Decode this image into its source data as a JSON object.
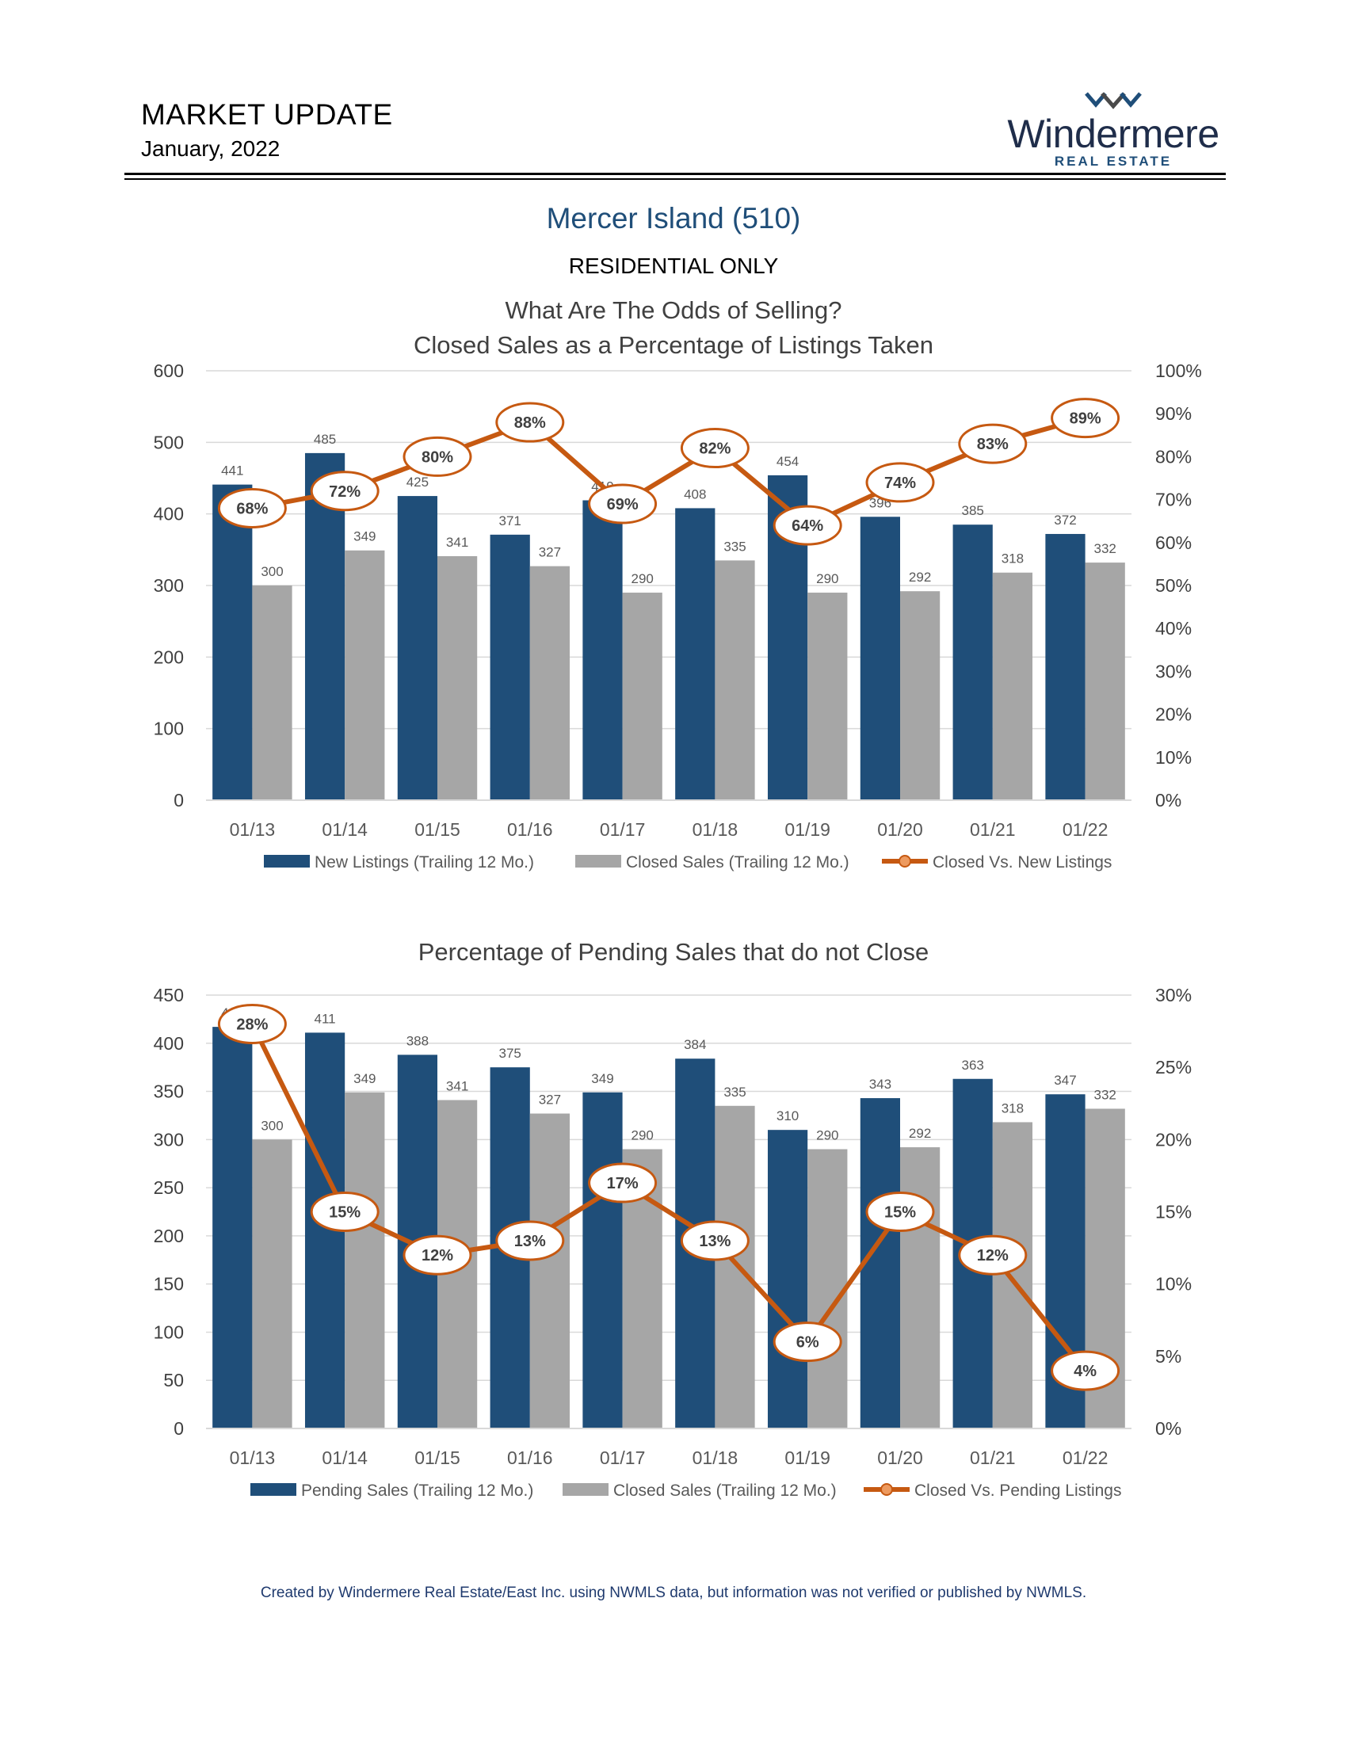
{
  "header": {
    "title": "MARKET UPDATE",
    "date": "January, 2022",
    "logo_word": "Windermere",
    "logo_sub": "REAL ESTATE"
  },
  "area": {
    "name": "Mercer Island (510)",
    "subtitle": "RESIDENTIAL ONLY"
  },
  "colors": {
    "bar_primary": "#1f4e79",
    "bar_secondary": "#a6a6a6",
    "line": "#c65911",
    "grid": "#d9d9d9"
  },
  "chart_data": [
    {
      "type": "bar",
      "title_lines": [
        "What Are The Odds of Selling?",
        "Closed Sales as a Percentage of Listings Taken"
      ],
      "categories": [
        "01/13",
        "01/14",
        "01/15",
        "01/16",
        "01/17",
        "01/18",
        "01/19",
        "01/20",
        "01/21",
        "01/22"
      ],
      "ylim": [
        0,
        600
      ],
      "yticks": [
        "0",
        "100",
        "200",
        "300",
        "400",
        "500",
        "600"
      ],
      "y2lim": [
        0,
        100
      ],
      "y2ticks": [
        "0%",
        "10%",
        "20%",
        "30%",
        "40%",
        "50%",
        "60%",
        "70%",
        "80%",
        "90%",
        "100%"
      ],
      "series": [
        {
          "name": "New Listings (Trailing 12 Mo.)",
          "kind": "bar",
          "values": [
            441,
            485,
            425,
            371,
            419,
            408,
            454,
            396,
            385,
            372
          ],
          "labels": [
            "441",
            "485",
            "425",
            "371",
            "419",
            "408",
            "454",
            "396",
            "385",
            "372"
          ]
        },
        {
          "name": "Closed Sales (Trailing 12 Mo.)",
          "kind": "bar",
          "values": [
            300,
            349,
            341,
            327,
            290,
            335,
            290,
            292,
            318,
            332
          ],
          "labels": [
            "300",
            "349",
            "341",
            "327",
            "290",
            "335",
            "290",
            "292",
            "318",
            "332"
          ]
        },
        {
          "name": "Closed Vs. New Listings",
          "kind": "line",
          "axis": "y2",
          "values": [
            68,
            72,
            80,
            88,
            69,
            82,
            64,
            74,
            83,
            89
          ],
          "labels": [
            "68%",
            "72%",
            "80%",
            "88%",
            "69%",
            "82%",
            "64%",
            "74%",
            "83%",
            "89%"
          ]
        }
      ],
      "legend": "bottom",
      "grid": true
    },
    {
      "type": "bar",
      "title_lines": [
        "Percentage of Pending Sales that do not Close"
      ],
      "categories": [
        "01/13",
        "01/14",
        "01/15",
        "01/16",
        "01/17",
        "01/18",
        "01/19",
        "01/20",
        "01/21",
        "01/22"
      ],
      "ylim": [
        0,
        450
      ],
      "yticks": [
        "0",
        "50",
        "100",
        "150",
        "200",
        "250",
        "300",
        "350",
        "400",
        "450"
      ],
      "y2lim": [
        0,
        30
      ],
      "y2ticks": [
        "0%",
        "5%",
        "10%",
        "15%",
        "20%",
        "25%",
        "30%"
      ],
      "series": [
        {
          "name": "Pending Sales (Trailing 12 Mo.)",
          "kind": "bar",
          "values": [
            417,
            411,
            388,
            375,
            349,
            384,
            310,
            343,
            363,
            347
          ],
          "labels": [
            "417",
            "411",
            "388",
            "375",
            "349",
            "384",
            "310",
            "343",
            "363",
            "347"
          ]
        },
        {
          "name": "Closed Sales (Trailing 12 Mo.)",
          "kind": "bar",
          "values": [
            300,
            349,
            341,
            327,
            290,
            335,
            290,
            292,
            318,
            332
          ],
          "labels": [
            "300",
            "349",
            "341",
            "327",
            "290",
            "335",
            "290",
            "292",
            "318",
            "332"
          ]
        },
        {
          "name": "Closed Vs. Pending Listings",
          "kind": "line",
          "axis": "y2",
          "values": [
            28,
            15,
            12,
            13,
            17,
            13,
            6,
            15,
            12,
            4
          ],
          "labels": [
            "28%",
            "15%",
            "12%",
            "13%",
            "17%",
            "13%",
            "6%",
            "15%",
            "12%",
            "4%"
          ]
        }
      ],
      "legend": "bottom",
      "grid": true
    }
  ],
  "footer": "Created by Windermere Real Estate/East Inc. using NWMLS data, but information was not verified or published by NWMLS."
}
